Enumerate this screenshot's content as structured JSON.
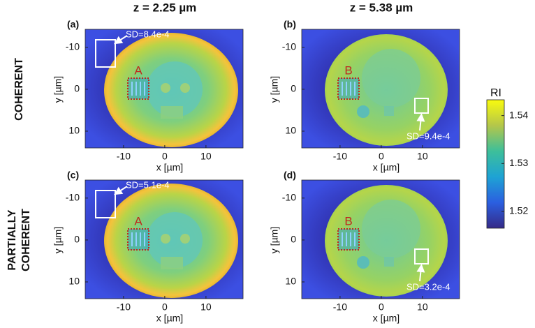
{
  "columns": [
    "z = 2.25 µm",
    "z = 5.38 µm"
  ],
  "rows": [
    {
      "lines": [
        "COHERENT"
      ]
    },
    {
      "lines": [
        "PARTIALLY",
        "COHERENT"
      ]
    }
  ],
  "panels": [
    {
      "label": "(a)",
      "roi": "A",
      "sd": "SD=8.4e-4"
    },
    {
      "label": "(b)",
      "roi": "B",
      "sd": "SD=9.4e-4"
    },
    {
      "label": "(c)",
      "roi": "A",
      "sd": "SD=5.1e-4"
    },
    {
      "label": "(d)",
      "roi": "B",
      "sd": "SD=3.2e-4"
    }
  ],
  "axes": {
    "xlabel": "x [µm]",
    "ylabel": "y [µm]",
    "xlim": [
      -19.3,
      19
    ],
    "ylim": [
      -14.3,
      14
    ],
    "xticks": [
      -10,
      0,
      10
    ],
    "yticks": [
      -10,
      0,
      10
    ]
  },
  "colorbar": {
    "title": "RI",
    "clim": [
      1.5165,
      1.5433
    ],
    "ticks": [
      1.52,
      1.53,
      1.54
    ]
  }
}
